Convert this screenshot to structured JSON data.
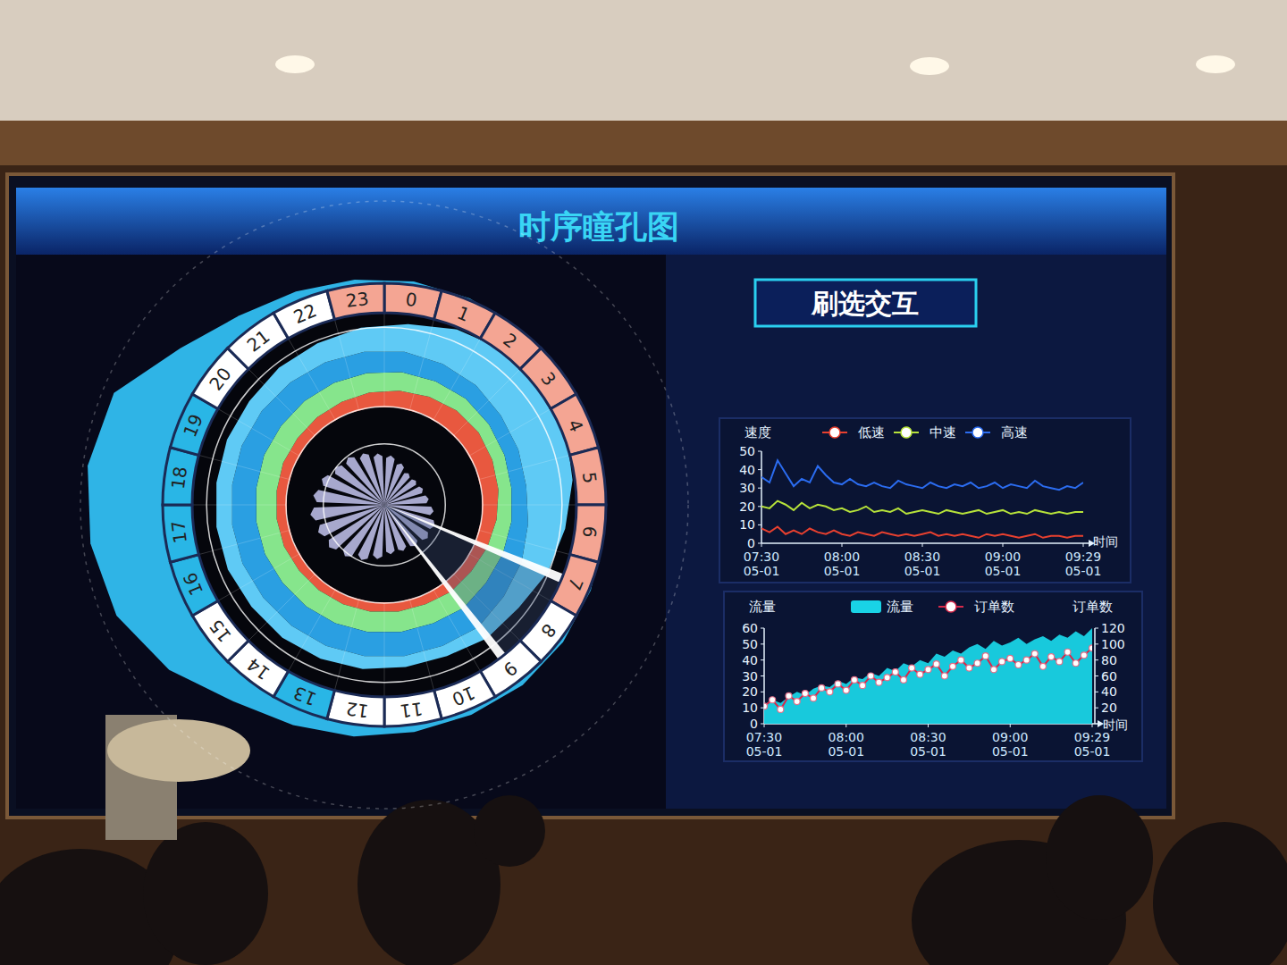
{
  "title": "时序瞳孔图",
  "button": "刷选交互",
  "chart_data": [
    {
      "type": "radial",
      "categories": [
        "0",
        "1",
        "2",
        "3",
        "4",
        "5",
        "6",
        "7",
        "8",
        "9",
        "10",
        "11",
        "12",
        "13",
        "14",
        "15",
        "16",
        "17",
        "18",
        "19",
        "20",
        "21",
        "22",
        "23"
      ],
      "colors": [
        "#f4a593",
        "#f4a593",
        "#f4a593",
        "#f4a593",
        "#f4a593",
        "#f4a593",
        "#f4a593",
        "#f4a593",
        "#ffffff",
        "#ffffff",
        "#ffffff",
        "#ffffff",
        "#ffffff",
        "#29b6e6",
        "#ffffff",
        "#ffffff",
        "#29b6e6",
        "#29b6e6",
        "#29b6e6",
        "#29b6e6",
        "#ffffff",
        "#ffffff",
        "#ffffff",
        "#f4a593"
      ],
      "ylim": [
        0,
        220
      ],
      "yticks": [
        0,
        85,
        220
      ],
      "y2lim": [
        0,
        100
      ],
      "y2ticks": [
        65
      ],
      "tick_labels": false,
      "stacked": true,
      "selection": [
        7.5,
        9.48
      ],
      "series": [
        {
          "type": "halo",
          "color": "#2fb4e6",
          "values": [
            136,
            134,
            132,
            130,
            130,
            130,
            132,
            134,
            136,
            138,
            138,
            140,
            145,
            150,
            160,
            185,
            205,
            212,
            215,
            208,
            170,
            150,
            142,
            138
          ]
        },
        {
          "type": "spike",
          "axis": "y2",
          "color": "#c4c6f0",
          "values": [
            50,
            45,
            40,
            40,
            42,
            45,
            50,
            55,
            55,
            52,
            50,
            50,
            55,
            60,
            65,
            70,
            72,
            75,
            72,
            68,
            62,
            60,
            56,
            52
          ]
        },
        {
          "type": "band",
          "color": "#e8583f",
          "values": [
            18,
            20,
            22,
            22,
            20,
            18,
            16,
            14,
            12,
            12,
            10,
            10,
            10,
            10,
            10,
            10,
            11,
            11,
            11,
            12,
            12,
            13,
            14,
            16
          ]
        },
        {
          "type": "band",
          "color": "#86e58c",
          "values": [
            20,
            18,
            16,
            14,
            14,
            14,
            16,
            18,
            20,
            22,
            22,
            22,
            22,
            22,
            22,
            22,
            22,
            22,
            22,
            22,
            22,
            22,
            22,
            21
          ]
        },
        {
          "type": "band",
          "color": "#2a9fe2",
          "values": [
            22,
            20,
            18,
            16,
            16,
            16,
            18,
            22,
            24,
            26,
            26,
            26,
            26,
            26,
            26,
            26,
            26,
            26,
            26,
            26,
            26,
            25,
            24,
            23
          ]
        },
        {
          "type": "band",
          "color": "#5fcaf5",
          "values": [
            30,
            40,
            48,
            55,
            55,
            50,
            40,
            30,
            20,
            15,
            12,
            12,
            14,
            15,
            16,
            16,
            17,
            17,
            17,
            17,
            17,
            20,
            22,
            26
          ]
        }
      ]
    },
    {
      "type": "line",
      "y_label": "速度",
      "x_label": "时间",
      "legend": "top",
      "categories": [
        "07:30\n05-01",
        null,
        null,
        null,
        null,
        null,
        null,
        null,
        null,
        null,
        "08:00\n05-01",
        null,
        null,
        null,
        null,
        null,
        null,
        null,
        null,
        null,
        "08:30\n05-01",
        null,
        null,
        null,
        null,
        null,
        null,
        null,
        null,
        null,
        "09:00\n05-01",
        null,
        null,
        null,
        null,
        null,
        null,
        null,
        null,
        null,
        "09:29\n05-01"
      ],
      "ylim": [
        0,
        50
      ],
      "yticks": [
        0,
        10,
        20,
        30,
        40,
        50
      ],
      "series": [
        {
          "name": "低速",
          "color": "#e8402f",
          "values": [
            8,
            6,
            9,
            5,
            7,
            5,
            8,
            6,
            5,
            7,
            5,
            4,
            6,
            5,
            4,
            6,
            5,
            4,
            5,
            4,
            5,
            6,
            4,
            5,
            4,
            5,
            4,
            3,
            5,
            4,
            5,
            4,
            3,
            4,
            5,
            3,
            4,
            4,
            3,
            4,
            4
          ]
        },
        {
          "name": "中速",
          "color": "#b6e23a",
          "values": [
            20,
            19,
            23,
            21,
            18,
            22,
            19,
            21,
            20,
            18,
            19,
            17,
            18,
            20,
            17,
            18,
            17,
            19,
            16,
            17,
            18,
            17,
            16,
            18,
            17,
            16,
            17,
            18,
            16,
            17,
            18,
            16,
            17,
            16,
            18,
            17,
            16,
            17,
            16,
            17,
            17
          ]
        },
        {
          "name": "高速",
          "color": "#2b6cf0",
          "values": [
            36,
            33,
            45,
            38,
            31,
            35,
            33,
            42,
            37,
            33,
            32,
            35,
            32,
            31,
            33,
            31,
            30,
            34,
            32,
            31,
            30,
            33,
            31,
            30,
            32,
            31,
            33,
            30,
            31,
            33,
            30,
            32,
            31,
            30,
            34,
            31,
            30,
            29,
            31,
            30,
            33
          ]
        }
      ]
    },
    {
      "type": "combo",
      "y_label": "流量",
      "y2_label": "订单数",
      "x_label": "时间",
      "legend": "top",
      "categories": [
        "07:30\n05-01",
        null,
        null,
        null,
        null,
        null,
        null,
        null,
        null,
        null,
        "08:00\n05-01",
        null,
        null,
        null,
        null,
        null,
        null,
        null,
        null,
        null,
        "08:30\n05-01",
        null,
        null,
        null,
        null,
        null,
        null,
        null,
        null,
        null,
        "09:00\n05-01",
        null,
        null,
        null,
        null,
        null,
        null,
        null,
        null,
        null,
        "09:29\n05-01"
      ],
      "ylim": [
        0,
        60
      ],
      "yticks": [
        0,
        10,
        20,
        30,
        40,
        50,
        60
      ],
      "y2lim": [
        0,
        120
      ],
      "y2ticks": [
        20,
        40,
        60,
        80,
        100,
        120
      ],
      "series": [
        {
          "name": "流量",
          "type": "area",
          "color": "#19d3e6",
          "values": [
            12,
            15,
            13,
            17,
            20,
            18,
            22,
            24,
            23,
            27,
            25,
            29,
            28,
            32,
            30,
            35,
            33,
            38,
            36,
            40,
            38,
            44,
            42,
            46,
            44,
            48,
            50,
            47,
            52,
            49,
            51,
            54,
            50,
            53,
            55,
            52,
            56,
            54,
            58,
            55,
            60
          ]
        },
        {
          "name": "订单数",
          "type": "line",
          "axis": "y2",
          "marker": "circle",
          "color": "#d8294a",
          "values": [
            22,
            30,
            18,
            35,
            28,
            38,
            32,
            45,
            40,
            50,
            42,
            55,
            48,
            60,
            52,
            58,
            65,
            55,
            70,
            62,
            68,
            75,
            60,
            72,
            80,
            70,
            76,
            85,
            68,
            78,
            82,
            74,
            80,
            88,
            72,
            84,
            78,
            90,
            76,
            86,
            95
          ]
        }
      ]
    }
  ]
}
